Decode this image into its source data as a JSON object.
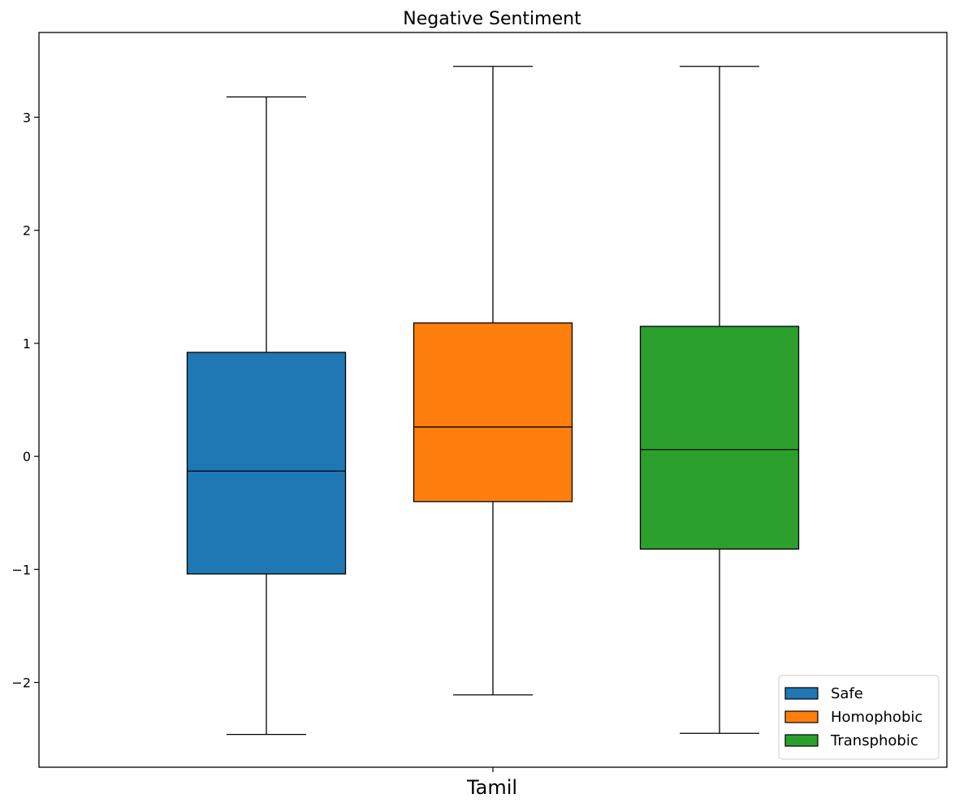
{
  "chart_data": {
    "type": "box",
    "title": "Negative Sentiment",
    "xlabel": "",
    "ylabel": "",
    "categories": [
      "Tamil"
    ],
    "ylim": [
      -2.75,
      3.75
    ],
    "yticks": [
      -2,
      -1,
      0,
      1,
      2,
      3
    ],
    "ytick_labels": [
      "−2",
      "−1",
      "0",
      "1",
      "2",
      "3"
    ],
    "grid": false,
    "legend_position": "bottom-right",
    "series": [
      {
        "name": "Safe",
        "color": "#1f77b4",
        "whisker_low": -2.46,
        "q1": -1.04,
        "median": -0.13,
        "q3": 0.92,
        "whisker_high": 3.18
      },
      {
        "name": "Homophobic",
        "color": "#ff7f0e",
        "whisker_low": -2.11,
        "q1": -0.4,
        "median": 0.26,
        "q3": 1.18,
        "whisker_high": 3.45
      },
      {
        "name": "Transphobic",
        "color": "#2ca02c",
        "whisker_low": -2.45,
        "q1": -0.82,
        "median": 0.06,
        "q3": 1.15,
        "whisker_high": 3.45
      }
    ]
  }
}
